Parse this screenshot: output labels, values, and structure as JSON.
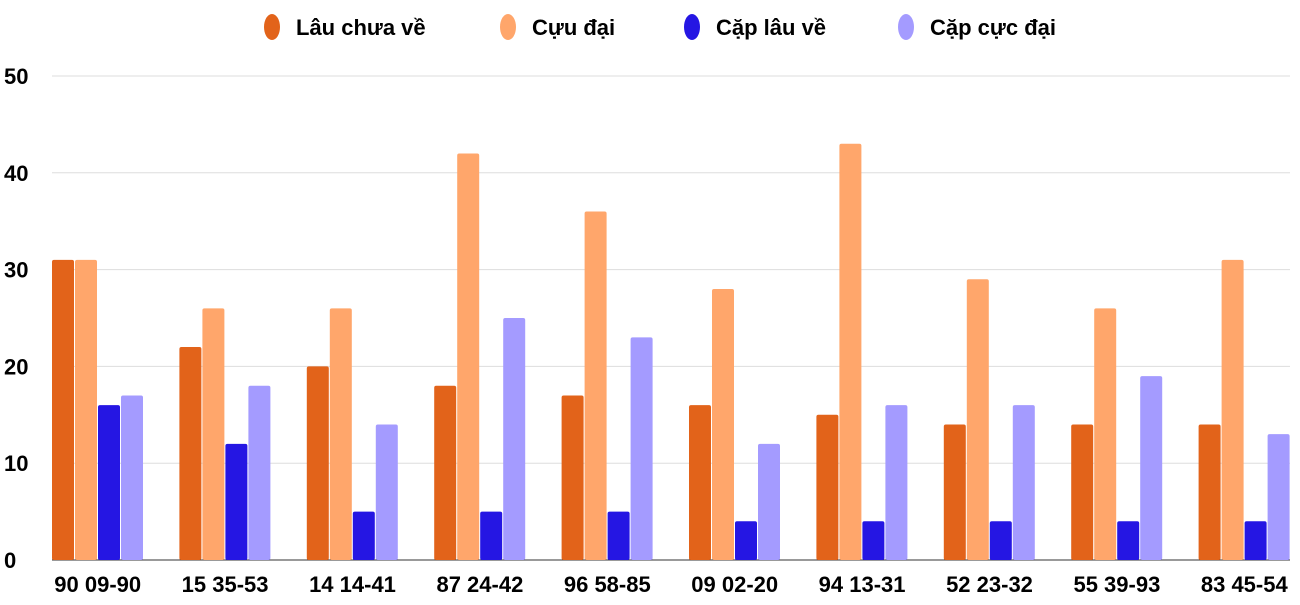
{
  "chart_data": {
    "type": "bar",
    "categories": [
      "90 09-90",
      "15 35-53",
      "14 14-41",
      "87 24-42",
      "96 58-85",
      "09 02-20",
      "94 13-31",
      "52 23-32",
      "55 39-93",
      "83 45-54"
    ],
    "series": [
      {
        "name": "Lâu chưa về",
        "color": "#E2631A",
        "values": [
          31,
          22,
          20,
          18,
          17,
          16,
          15,
          14,
          14,
          14
        ]
      },
      {
        "name": "Cựu đại",
        "color": "#FFA66B",
        "values": [
          31,
          26,
          26,
          42,
          36,
          28,
          43,
          29,
          26,
          31
        ]
      },
      {
        "name": "Cặp lâu về",
        "color": "#2516E3",
        "values": [
          16,
          12,
          5,
          5,
          5,
          4,
          4,
          4,
          4,
          4
        ]
      },
      {
        "name": "Cặp cực đại",
        "color": "#A49BFF",
        "values": [
          17,
          18,
          14,
          25,
          23,
          12,
          16,
          16,
          19,
          13
        ]
      }
    ],
    "yticks": [
      "0",
      "10",
      "20",
      "30",
      "40",
      "50"
    ],
    "ylim": [
      0,
      50
    ],
    "grid": true,
    "legend": "top-center"
  }
}
